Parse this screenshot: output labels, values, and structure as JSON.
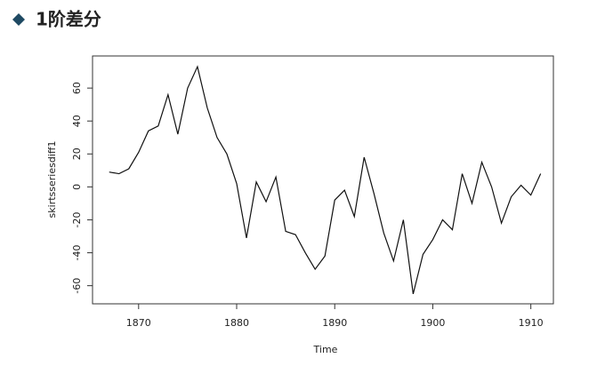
{
  "chart_data": {
    "type": "line",
    "title": "1阶差分",
    "xlabel": "Time",
    "ylabel": "skirtsseriesdiff1",
    "x": [
      1867,
      1868,
      1869,
      1870,
      1871,
      1872,
      1873,
      1874,
      1875,
      1876,
      1877,
      1878,
      1879,
      1880,
      1881,
      1882,
      1883,
      1884,
      1885,
      1886,
      1887,
      1888,
      1889,
      1890,
      1891,
      1892,
      1893,
      1894,
      1895,
      1896,
      1897,
      1898,
      1899,
      1900,
      1901,
      1902,
      1903,
      1904,
      1905,
      1906,
      1907,
      1908,
      1909,
      1910,
      1911
    ],
    "series": [
      {
        "name": "skirtsseriesdiff1",
        "color": "#111111",
        "values": [
          9,
          8,
          11,
          21,
          34,
          37,
          56,
          32,
          60,
          73,
          48,
          30,
          20,
          2,
          -31,
          3,
          -9,
          6,
          -27,
          -29,
          -40,
          -50,
          -42,
          -8,
          -2,
          -18,
          18,
          -4,
          -28,
          -45,
          -20,
          -65,
          -41,
          -32,
          -20,
          -26,
          8,
          -10,
          15,
          0,
          -22,
          -6,
          1,
          -5,
          8
        ]
      }
    ],
    "xlim": [
      1865.3,
      1912.3
    ],
    "xticks": [
      1870,
      1880,
      1890,
      1900,
      1910
    ],
    "ylim": [
      -71,
      79.5
    ],
    "yticks": [
      -60,
      -40,
      -20,
      0,
      20,
      40,
      60
    ]
  }
}
